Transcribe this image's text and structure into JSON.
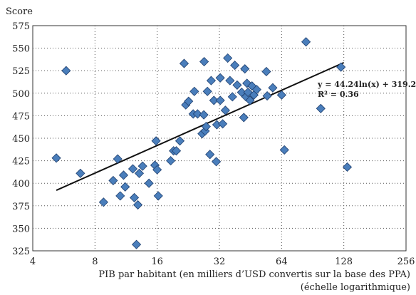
{
  "chart_data": {
    "type": "scatter",
    "ylabel": "Score",
    "xlabel": "PIB par habitant (en milliers d’USD convertis sur la base des PPA)",
    "xlabel_note": "(échelle logarithmique)",
    "x_scale": "log2",
    "xlim": [
      4,
      256
    ],
    "ylim": [
      325,
      575
    ],
    "x_ticks": [
      4,
      8,
      16,
      32,
      64,
      128,
      256
    ],
    "x_tick_labels": [
      "4",
      "8",
      "16",
      "32",
      "64",
      "128",
      "256"
    ],
    "y_ticks": [
      325,
      350,
      375,
      400,
      425,
      450,
      475,
      500,
      525,
      550,
      575
    ],
    "y_tick_labels": [
      "325",
      "350",
      "375",
      "400",
      "425",
      "450",
      "475",
      "500",
      "525",
      "550",
      "575"
    ],
    "grid": "dotted",
    "marker_color": "#4a7ebb",
    "marker_edge_color": "#1f3f6e",
    "trendline": {
      "equation_label": "y = 44.24ln(x) + 319.29",
      "r2_label": "R² = 0.36",
      "a": 44.24,
      "b": 319.29,
      "x_range": [
        5.2,
        128
      ]
    },
    "points": [
      [
        5.2,
        428
      ],
      [
        5.8,
        525
      ],
      [
        6.8,
        411
      ],
      [
        8.8,
        379
      ],
      [
        9.8,
        403
      ],
      [
        10.3,
        427
      ],
      [
        10.6,
        386
      ],
      [
        11.0,
        409
      ],
      [
        11.2,
        396
      ],
      [
        12.2,
        416
      ],
      [
        12.4,
        384
      ],
      [
        12.9,
        376
      ],
      [
        12.7,
        332
      ],
      [
        13.1,
        411
      ],
      [
        13.6,
        419
      ],
      [
        14.6,
        400
      ],
      [
        15.6,
        420
      ],
      [
        15.8,
        447
      ],
      [
        16.0,
        415
      ],
      [
        16.2,
        386
      ],
      [
        18.6,
        425
      ],
      [
        19.2,
        436
      ],
      [
        19.8,
        436
      ],
      [
        20.6,
        447
      ],
      [
        21.6,
        533
      ],
      [
        22.0,
        487
      ],
      [
        22.7,
        491
      ],
      [
        23.9,
        477
      ],
      [
        24.2,
        502
      ],
      [
        25.1,
        477
      ],
      [
        26.4,
        455
      ],
      [
        26.9,
        476
      ],
      [
        27.0,
        535
      ],
      [
        27.3,
        458
      ],
      [
        27.6,
        463
      ],
      [
        28.0,
        502
      ],
      [
        28.8,
        432
      ],
      [
        29.2,
        514
      ],
      [
        30.1,
        492
      ],
      [
        30.9,
        424
      ],
      [
        31.1,
        465
      ],
      [
        32.3,
        517
      ],
      [
        32.3,
        492
      ],
      [
        33.2,
        466
      ],
      [
        34.2,
        481
      ],
      [
        35.1,
        539
      ],
      [
        36.0,
        514
      ],
      [
        37.0,
        496
      ],
      [
        38.0,
        531
      ],
      [
        39.0,
        509
      ],
      [
        41.0,
        501
      ],
      [
        42.0,
        473
      ],
      [
        42.5,
        527
      ],
      [
        43.0,
        496
      ],
      [
        43.5,
        511
      ],
      [
        44.0,
        501
      ],
      [
        45.0,
        492
      ],
      [
        46.0,
        508
      ],
      [
        47.0,
        498
      ],
      [
        48.5,
        504
      ],
      [
        54.0,
        524
      ],
      [
        54.5,
        497
      ],
      [
        58.0,
        506
      ],
      [
        64.0,
        498
      ],
      [
        66.0,
        437
      ],
      [
        84.0,
        557
      ],
      [
        99.0,
        483
      ],
      [
        124.0,
        529
      ],
      [
        133.0,
        418
      ]
    ]
  }
}
